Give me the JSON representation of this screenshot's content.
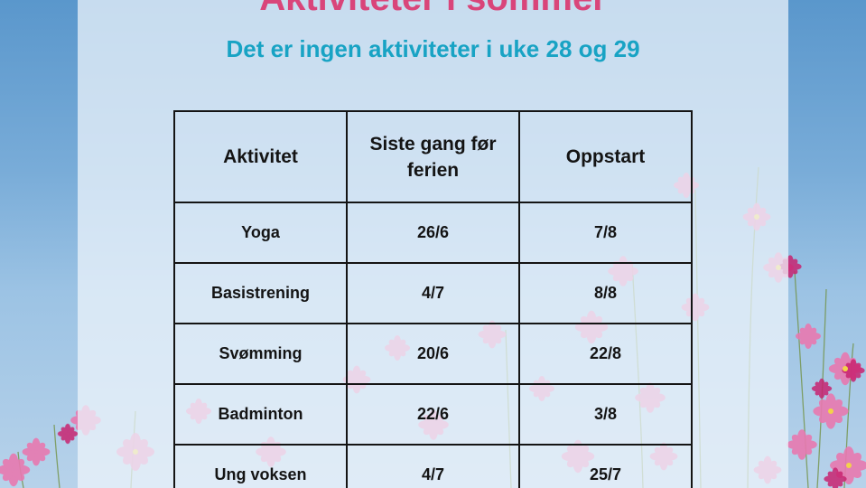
{
  "header": {
    "title": "Aktiviteter i sommer",
    "subtitle": "Det er ingen aktiviteter i uke 28 og 29"
  },
  "table": {
    "headers": [
      "Aktivitet",
      "Siste gang før ferien",
      "Oppstart"
    ],
    "rows": [
      {
        "aktivitet": "Yoga",
        "siste": "26/6",
        "oppstart": "7/8"
      },
      {
        "aktivitet": "Basistrening",
        "siste": "4/7",
        "oppstart": "8/8"
      },
      {
        "aktivitet": "Svømming",
        "siste": "20/6",
        "oppstart": "22/8"
      },
      {
        "aktivitet": "Badminton",
        "siste": "22/6",
        "oppstart": "3/8"
      },
      {
        "aktivitet": "Ung voksen",
        "siste": "4/7",
        "oppstart": "25/7"
      }
    ]
  },
  "colors": {
    "title": "#d9457a",
    "subtitle": "#18a3c4",
    "table_text": "#141414",
    "sky": "#79acd8",
    "flower_pink": "#e879b0",
    "flower_magenta": "#c8236f"
  },
  "background": {
    "image_subject": "cosmos-flowers-field-icon"
  }
}
